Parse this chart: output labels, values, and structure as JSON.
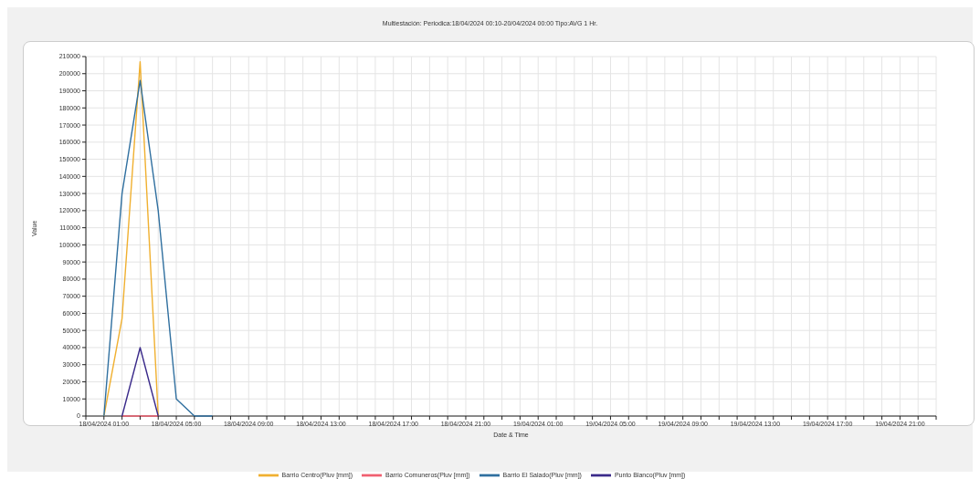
{
  "chart_data": {
    "type": "line",
    "title": "Multiestación: Periodica:18/04/2024 00:10-20/04/2024 00:00  Tipo:AVG 1 Hr.",
    "xlabel": "Date & Time",
    "ylabel": "Value",
    "x": [
      "2024-04-18T01:00",
      "2024-04-18T02:00",
      "2024-04-18T03:00",
      "2024-04-18T04:00",
      "2024-04-18T05:00",
      "2024-04-18T06:00",
      "2024-04-18T07:00"
    ],
    "series": [
      {
        "name": "Barrio Centro(Pluv [mm])",
        "color": "#f0b030",
        "values": [
          0,
          57000,
          207000,
          0,
          null,
          null,
          null
        ]
      },
      {
        "name": "Barrio Comuneros(Pluv [mm])",
        "color": "#f06070",
        "values": [
          null,
          0,
          0,
          0,
          null,
          null,
          null
        ]
      },
      {
        "name": "Barrio El Salado(Pluv [mm])",
        "color": "#2f6f9f",
        "values": [
          0,
          130000,
          196000,
          120000,
          10000,
          0,
          0
        ]
      },
      {
        "name": "Punto Blanco(Pluv [mm])",
        "color": "#3a2a8a",
        "values": [
          null,
          0,
          40000,
          0,
          null,
          null,
          null
        ]
      }
    ],
    "xlim": [
      "2024-04-18T00:00",
      "2024-04-19T23:00"
    ],
    "xticks": [
      {
        "value": "2024-04-18T00:00",
        "label": null
      },
      {
        "value": "2024-04-18T01:00",
        "label": "18/04/2024 01:00"
      },
      {
        "value": "2024-04-18T02:00",
        "label": null
      },
      {
        "value": "2024-04-18T03:00",
        "label": null
      },
      {
        "value": "2024-04-18T04:00",
        "label": null
      },
      {
        "value": "2024-04-18T05:00",
        "label": "18/04/2024 05:00"
      },
      {
        "value": "2024-04-18T06:00",
        "label": null
      },
      {
        "value": "2024-04-18T07:00",
        "label": null
      },
      {
        "value": "2024-04-18T08:00",
        "label": null
      },
      {
        "value": "2024-04-18T09:00",
        "label": "18/04/2024 09:00"
      },
      {
        "value": "2024-04-18T10:00",
        "label": null
      },
      {
        "value": "2024-04-18T11:00",
        "label": null
      },
      {
        "value": "2024-04-18T12:00",
        "label": null
      },
      {
        "value": "2024-04-18T13:00",
        "label": "18/04/2024 13:00"
      },
      {
        "value": "2024-04-18T14:00",
        "label": null
      },
      {
        "value": "2024-04-18T15:00",
        "label": null
      },
      {
        "value": "2024-04-18T16:00",
        "label": null
      },
      {
        "value": "2024-04-18T17:00",
        "label": "18/04/2024 17:00"
      },
      {
        "value": "2024-04-18T18:00",
        "label": null
      },
      {
        "value": "2024-04-18T19:00",
        "label": null
      },
      {
        "value": "2024-04-18T20:00",
        "label": null
      },
      {
        "value": "2024-04-18T21:00",
        "label": "18/04/2024 21:00"
      },
      {
        "value": "2024-04-18T22:00",
        "label": null
      },
      {
        "value": "2024-04-18T23:00",
        "label": null
      },
      {
        "value": "2024-04-19T00:00",
        "label": null
      },
      {
        "value": "2024-04-19T01:00",
        "label": "19/04/2024 01:00"
      },
      {
        "value": "2024-04-19T02:00",
        "label": null
      },
      {
        "value": "2024-04-19T03:00",
        "label": null
      },
      {
        "value": "2024-04-19T04:00",
        "label": null
      },
      {
        "value": "2024-04-19T05:00",
        "label": "19/04/2024 05:00"
      },
      {
        "value": "2024-04-19T06:00",
        "label": null
      },
      {
        "value": "2024-04-19T07:00",
        "label": null
      },
      {
        "value": "2024-04-19T08:00",
        "label": null
      },
      {
        "value": "2024-04-19T09:00",
        "label": "19/04/2024 09:00"
      },
      {
        "value": "2024-04-19T10:00",
        "label": null
      },
      {
        "value": "2024-04-19T11:00",
        "label": null
      },
      {
        "value": "2024-04-19T12:00",
        "label": null
      },
      {
        "value": "2024-04-19T13:00",
        "label": "19/04/2024 13:00"
      },
      {
        "value": "2024-04-19T14:00",
        "label": null
      },
      {
        "value": "2024-04-19T15:00",
        "label": null
      },
      {
        "value": "2024-04-19T16:00",
        "label": null
      },
      {
        "value": "2024-04-19T17:00",
        "label": "19/04/2024 17:00"
      },
      {
        "value": "2024-04-19T18:00",
        "label": null
      },
      {
        "value": "2024-04-19T19:00",
        "label": null
      },
      {
        "value": "2024-04-19T20:00",
        "label": null
      },
      {
        "value": "2024-04-19T21:00",
        "label": "19/04/2024 21:00"
      },
      {
        "value": "2024-04-19T22:00",
        "label": null
      },
      {
        "value": "2024-04-19T23:00",
        "label": null
      }
    ],
    "ylim": [
      0,
      210000
    ],
    "yticks": [
      0,
      10000,
      20000,
      30000,
      40000,
      50000,
      60000,
      70000,
      80000,
      90000,
      100000,
      110000,
      120000,
      130000,
      140000,
      150000,
      160000,
      170000,
      180000,
      190000,
      200000,
      210000
    ],
    "grid": true,
    "legend": "bottom",
    "marker": "none",
    "line_style": "solid"
  }
}
